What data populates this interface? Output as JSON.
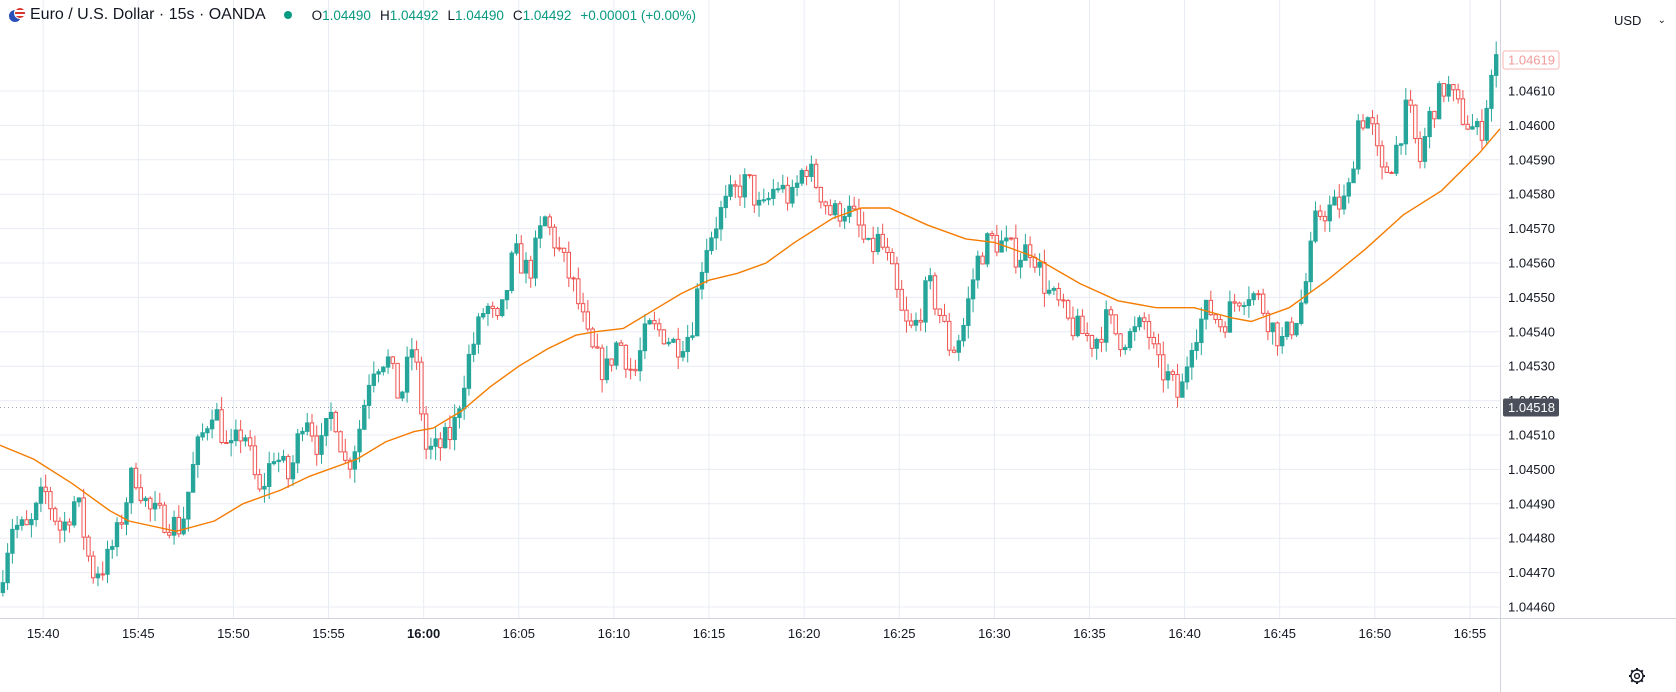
{
  "header": {
    "symbol": "Euro / U.S. Dollar · 15s · OANDA",
    "ohlc": {
      "o_label": "O",
      "o": "1.04490",
      "h_label": "H",
      "h": "1.04492",
      "l_label": "L",
      "l": "1.04490",
      "c_label": "C",
      "c": "1.04492",
      "change": "+0.00001 (+0.00%)"
    }
  },
  "currency_selector": {
    "label": "USD"
  },
  "colors": {
    "up": "#26a69a",
    "down": "#ef5350",
    "ma": "#f57c00",
    "grid": "#e8ecf3",
    "text": "#131722"
  },
  "chart_data": {
    "type": "candlestick",
    "x_ticks": [
      {
        "label": "15:40",
        "bold": false
      },
      {
        "label": "15:45",
        "bold": false
      },
      {
        "label": "15:50",
        "bold": false
      },
      {
        "label": "15:55",
        "bold": false
      },
      {
        "label": "16:00",
        "bold": true
      },
      {
        "label": "16:05",
        "bold": false
      },
      {
        "label": "16:10",
        "bold": false
      },
      {
        "label": "16:15",
        "bold": false
      },
      {
        "label": "16:20",
        "bold": false
      },
      {
        "label": "16:25",
        "bold": false
      },
      {
        "label": "16:30",
        "bold": false
      },
      {
        "label": "16:35",
        "bold": false
      },
      {
        "label": "16:40",
        "bold": false
      },
      {
        "label": "16:45",
        "bold": false
      },
      {
        "label": "16:50",
        "bold": false
      },
      {
        "label": "16:55",
        "bold": false
      }
    ],
    "x_tick_start_min": 4,
    "y_ticks": [
      "1.04460",
      "1.04470",
      "1.04480",
      "1.04490",
      "1.04500",
      "1.04510",
      "1.04520",
      "1.04530",
      "1.04540",
      "1.04550",
      "1.04560",
      "1.04570",
      "1.04580",
      "1.04590",
      "1.04600",
      "1.04610"
    ],
    "ylim": [
      1.04456,
      1.04627
    ],
    "xlim_minutes": [
      37.73,
      116.58
    ],
    "last_price": "1.04518",
    "last_price_value": 1.04518,
    "faded_price": "1.04619",
    "faded_price_value": 1.04619,
    "ma_points": [
      [
        37.73,
        1.04507
      ],
      [
        39.5,
        1.04503
      ],
      [
        41.5,
        1.04496
      ],
      [
        43.5,
        1.04488
      ],
      [
        44.5,
        1.04485
      ],
      [
        47.0,
        1.04482
      ],
      [
        49.0,
        1.04485
      ],
      [
        50.5,
        1.0449
      ],
      [
        52.5,
        1.04494
      ],
      [
        54.0,
        1.04498
      ],
      [
        56.5,
        1.04503
      ],
      [
        58.0,
        1.04508
      ],
      [
        59.5,
        1.04511
      ],
      [
        60.5,
        1.04512
      ],
      [
        62.0,
        1.04517
      ],
      [
        63.5,
        1.04524
      ],
      [
        65.0,
        1.0453
      ],
      [
        66.5,
        1.04535
      ],
      [
        68.0,
        1.04539
      ],
      [
        69.0,
        1.0454
      ],
      [
        70.5,
        1.04541
      ],
      [
        72.0,
        1.04546
      ],
      [
        73.5,
        1.04551
      ],
      [
        75.0,
        1.04555
      ],
      [
        76.5,
        1.04557
      ],
      [
        78.0,
        1.0456
      ],
      [
        79.5,
        1.04566
      ],
      [
        81.5,
        1.04573
      ],
      [
        83.0,
        1.04576
      ],
      [
        84.5,
        1.04576
      ],
      [
        86.5,
        1.04571
      ],
      [
        88.5,
        1.04567
      ],
      [
        90.0,
        1.04566
      ],
      [
        92.0,
        1.04562
      ],
      [
        94.5,
        1.04554
      ],
      [
        96.5,
        1.04549
      ],
      [
        98.5,
        1.04547
      ],
      [
        100.5,
        1.04547
      ],
      [
        102.5,
        1.04544
      ],
      [
        103.5,
        1.04543
      ],
      [
        105.5,
        1.04547
      ],
      [
        107.5,
        1.04555
      ],
      [
        109.5,
        1.04564
      ],
      [
        111.5,
        1.04574
      ],
      [
        113.5,
        1.04581
      ],
      [
        115.5,
        1.04592
      ],
      [
        116.58,
        1.04599
      ]
    ],
    "anchors": [
      [
        37.8,
        1.04462
      ],
      [
        38.6,
        1.04484
      ],
      [
        39.5,
        1.04482
      ],
      [
        40.3,
        1.04494
      ],
      [
        41.2,
        1.04482
      ],
      [
        42.0,
        1.04492
      ],
      [
        42.8,
        1.0447
      ],
      [
        43.5,
        1.04472
      ],
      [
        44.2,
        1.04482
      ],
      [
        45.0,
        1.045
      ],
      [
        45.8,
        1.04488
      ],
      [
        46.5,
        1.04486
      ],
      [
        47.5,
        1.04483
      ],
      [
        48.3,
        1.04505
      ],
      [
        49.2,
        1.04519
      ],
      [
        50.0,
        1.04504
      ],
      [
        50.8,
        1.04512
      ],
      [
        51.6,
        1.04492
      ],
      [
        52.4,
        1.04505
      ],
      [
        53.2,
        1.04497
      ],
      [
        54.0,
        1.04518
      ],
      [
        54.8,
        1.04505
      ],
      [
        55.5,
        1.04518
      ],
      [
        56.2,
        1.045
      ],
      [
        56.8,
        1.0451
      ],
      [
        57.5,
        1.0453
      ],
      [
        58.3,
        1.04533
      ],
      [
        59.0,
        1.0452
      ],
      [
        59.7,
        1.04537
      ],
      [
        60.4,
        1.04505
      ],
      [
        61.0,
        1.04506
      ],
      [
        61.8,
        1.04511
      ],
      [
        62.5,
        1.0453
      ],
      [
        63.5,
        1.04548
      ],
      [
        64.2,
        1.04541
      ],
      [
        65.0,
        1.04563
      ],
      [
        65.8,
        1.04557
      ],
      [
        66.6,
        1.04573
      ],
      [
        67.4,
        1.04563
      ],
      [
        68.2,
        1.04552
      ],
      [
        69.0,
        1.04535
      ],
      [
        69.8,
        1.04528
      ],
      [
        70.5,
        1.04538
      ],
      [
        71.3,
        1.04527
      ],
      [
        72.0,
        1.04541
      ],
      [
        72.8,
        1.0454
      ],
      [
        73.5,
        1.04536
      ],
      [
        74.3,
        1.0454
      ],
      [
        75.0,
        1.04564
      ],
      [
        75.8,
        1.04574
      ],
      [
        76.5,
        1.0458
      ],
      [
        77.3,
        1.04584
      ],
      [
        78.0,
        1.04574
      ],
      [
        78.8,
        1.04583
      ],
      [
        79.6,
        1.04578
      ],
      [
        80.3,
        1.04589
      ],
      [
        81.0,
        1.04582
      ],
      [
        81.7,
        1.04574
      ],
      [
        82.4,
        1.04576
      ],
      [
        83.0,
        1.04572
      ],
      [
        83.6,
        1.04563
      ],
      [
        84.2,
        1.04567
      ],
      [
        84.8,
        1.04558
      ],
      [
        85.5,
        1.04542
      ],
      [
        86.0,
        1.0454
      ],
      [
        86.8,
        1.04554
      ],
      [
        87.4,
        1.04545
      ],
      [
        88.0,
        1.04534
      ],
      [
        88.6,
        1.04541
      ],
      [
        89.3,
        1.0456
      ],
      [
        90.0,
        1.04567
      ],
      [
        90.8,
        1.04565
      ],
      [
        91.5,
        1.04562
      ],
      [
        92.2,
        1.04565
      ],
      [
        93.0,
        1.04552
      ],
      [
        93.6,
        1.04548
      ],
      [
        94.2,
        1.04542
      ],
      [
        94.8,
        1.0454
      ],
      [
        95.5,
        1.04537
      ],
      [
        96.2,
        1.04544
      ],
      [
        96.8,
        1.04538
      ],
      [
        97.5,
        1.04539
      ],
      [
        98.2,
        1.04543
      ],
      [
        98.8,
        1.0453
      ],
      [
        99.5,
        1.04526
      ],
      [
        100.0,
        1.0452
      ],
      [
        100.6,
        1.04538
      ],
      [
        101.5,
        1.04547
      ],
      [
        102.2,
        1.04542
      ],
      [
        103.0,
        1.0455
      ],
      [
        103.6,
        1.04552
      ],
      [
        104.2,
        1.04549
      ],
      [
        104.8,
        1.04542
      ],
      [
        105.4,
        1.04537
      ],
      [
        106.0,
        1.04543
      ],
      [
        106.5,
        1.0455
      ],
      [
        107.2,
        1.04574
      ],
      [
        108.0,
        1.04576
      ],
      [
        108.8,
        1.04578
      ],
      [
        109.4,
        1.04602
      ],
      [
        110.0,
        1.04602
      ],
      [
        110.6,
        1.04585
      ],
      [
        111.2,
        1.0459
      ],
      [
        112.0,
        1.04606
      ],
      [
        112.6,
        1.04589
      ],
      [
        113.2,
        1.04604
      ],
      [
        114.0,
        1.04612
      ],
      [
        114.6,
        1.04605
      ],
      [
        115.2,
        1.046
      ],
      [
        115.8,
        1.04597
      ],
      [
        116.5,
        1.04618
      ]
    ]
  }
}
